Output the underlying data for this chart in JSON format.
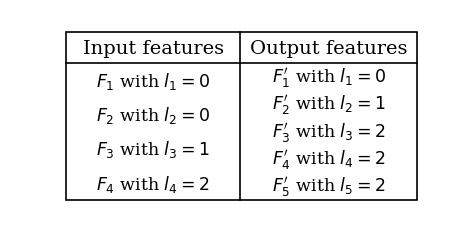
{
  "col_headers": [
    "Input features",
    "Output features"
  ],
  "input_rows": [
    "$F_1$ with $l_1 = 0$",
    "$F_2$ with $l_2 = 0$",
    "$F_3$ with $l_3 = 1$",
    "$F_4$ with $l_4 = 2$"
  ],
  "output_rows": [
    "$F_1'$ with $l_1 = 0$",
    "$F_2'$ with $l_2 = 1$",
    "$F_3'$ with $l_3 = 2$",
    "$F_4'$ with $l_4 = 2$",
    "$F_5'$ with $l_5 = 2$"
  ],
  "bg_color": "#ffffff",
  "border_color": "#000000",
  "text_color": "#000000",
  "header_fontsize": 14,
  "cell_fontsize": 12.5,
  "figwidth": 4.72,
  "figheight": 2.32,
  "dpi": 100
}
